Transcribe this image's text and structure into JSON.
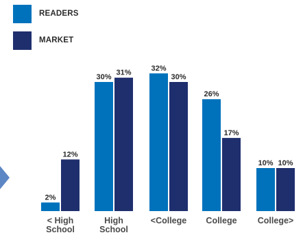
{
  "chart_data": {
    "type": "bar",
    "categories": [
      "< High\nSchool",
      "High\nSchool",
      "<College",
      "College",
      "College>"
    ],
    "series": [
      {
        "name": "READERS",
        "color": "#0072bc",
        "values": [
          2,
          30,
          32,
          26,
          10
        ],
        "labels": [
          "2%",
          "30%",
          "32%",
          "26%",
          "10%"
        ]
      },
      {
        "name": "MARKET",
        "color": "#1f2f6e",
        "values": [
          12,
          31,
          30,
          17,
          10
        ],
        "labels": [
          "12%",
          "31%",
          "30%",
          "17%",
          "10%"
        ]
      }
    ],
    "title": "",
    "xlabel": "",
    "ylabel": "",
    "ylim": [
      0,
      32
    ],
    "grid": false,
    "legend": "top-left"
  }
}
